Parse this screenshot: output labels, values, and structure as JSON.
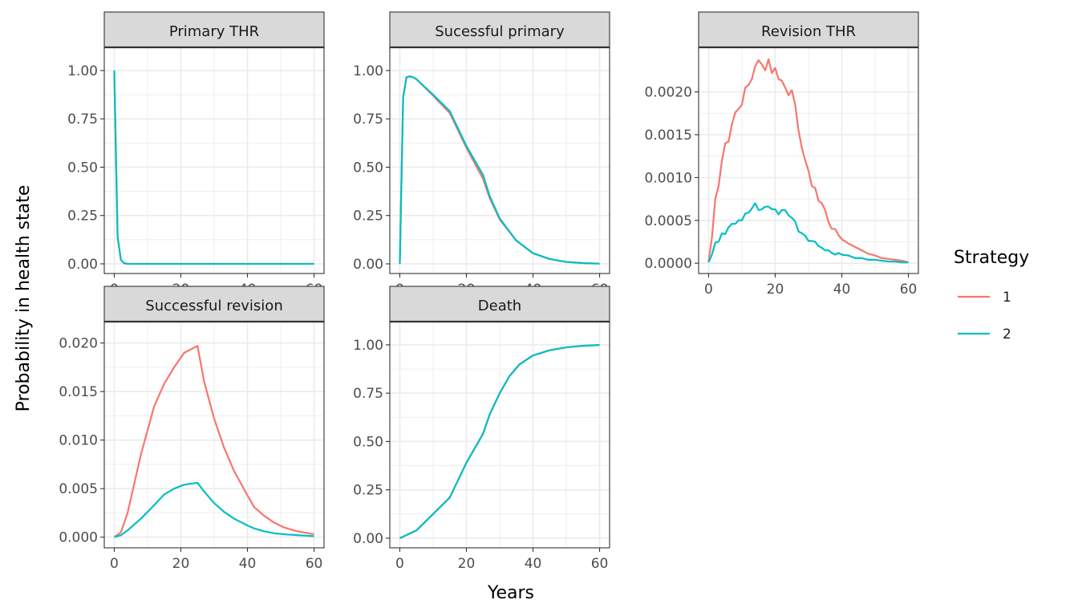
{
  "chart_data": {
    "type": "line",
    "xlabel": "Years",
    "ylabel": "Probability in health state",
    "legend": {
      "title": "Strategy",
      "placement": "right",
      "entries": [
        {
          "label": "1",
          "color": "#F8766D"
        },
        {
          "label": "2",
          "color": "#00BFC4"
        }
      ]
    },
    "grid": true,
    "x_ticks": [
      "0",
      "20",
      "40",
      "60"
    ],
    "x_tick_values": [
      0,
      20,
      40,
      60
    ],
    "panels": [
      {
        "title": "Primary THR",
        "ylim": [
          -0.05,
          1.12
        ],
        "y_ticks": [
          "0.00",
          "0.25",
          "0.50",
          "0.75",
          "1.00"
        ],
        "y_tick_values": [
          0,
          0.25,
          0.5,
          0.75,
          1.0
        ],
        "series": [
          {
            "name": "1",
            "x": [
              0,
              1,
              2,
              3,
              4,
              5,
              10,
              20,
              30,
              40,
              50,
              60
            ],
            "y": [
              1.0,
              0.14,
              0.02,
              0.003,
              0.0005,
              0,
              0,
              0,
              0,
              0,
              0,
              0
            ]
          },
          {
            "name": "2",
            "x": [
              0,
              1,
              2,
              3,
              4,
              5,
              10,
              20,
              30,
              40,
              50,
              60
            ],
            "y": [
              1.0,
              0.14,
              0.02,
              0.003,
              0.0005,
              0,
              0,
              0,
              0,
              0,
              0,
              0
            ]
          }
        ]
      },
      {
        "title": "Sucessful primary",
        "ylim": [
          -0.05,
          1.12
        ],
        "y_ticks": [
          "0.00",
          "0.25",
          "0.50",
          "0.75",
          "1.00"
        ],
        "y_tick_values": [
          0,
          0.25,
          0.5,
          0.75,
          1.0
        ],
        "series": [
          {
            "name": "1",
            "x": [
              0,
              1,
              2,
              3,
              4,
              5,
              10,
              15,
              20,
              25,
              27,
              30,
              35,
              40,
              45,
              50,
              55,
              60
            ],
            "y": [
              0,
              0.86,
              0.965,
              0.97,
              0.965,
              0.955,
              0.87,
              0.78,
              0.6,
              0.44,
              0.34,
              0.23,
              0.12,
              0.055,
              0.025,
              0.01,
              0.004,
              0.001
            ]
          },
          {
            "name": "2",
            "x": [
              0,
              1,
              2,
              3,
              4,
              5,
              10,
              15,
              20,
              25,
              27,
              30,
              35,
              40,
              45,
              50,
              55,
              60
            ],
            "y": [
              0,
              0.86,
              0.965,
              0.97,
              0.965,
              0.955,
              0.875,
              0.79,
              0.61,
              0.46,
              0.35,
              0.235,
              0.12,
              0.055,
              0.025,
              0.01,
              0.004,
              0.001
            ]
          }
        ]
      },
      {
        "title": "Revision THR",
        "ylim": [
          -0.00012,
          0.00252
        ],
        "y_ticks": [
          "0.0000",
          "0.0005",
          "0.0010",
          "0.0015",
          "0.0020"
        ],
        "y_tick_values": [
          0,
          0.0005,
          0.001,
          0.0015,
          0.002
        ],
        "series": [
          {
            "name": "1",
            "x": [
              0,
              1,
              2,
              3,
              4,
              5,
              6,
              7,
              8,
              9,
              10,
              11,
              12,
              13,
              14,
              15,
              16,
              17,
              18,
              19,
              20,
              21,
              22,
              23,
              24,
              25,
              26,
              27,
              28,
              29,
              30,
              31,
              32,
              33,
              34,
              35,
              36,
              37,
              38,
              39,
              40,
              42,
              44,
              46,
              48,
              50,
              52,
              54,
              56,
              58,
              60
            ],
            "y": [
              2e-05,
              0.0003,
              0.00075,
              0.0009,
              0.0012,
              0.0014,
              0.00142,
              0.00162,
              0.00176,
              0.0018,
              0.00185,
              0.00205,
              0.00208,
              0.00215,
              0.0023,
              0.00237,
              0.00232,
              0.00225,
              0.00238,
              0.00222,
              0.00228,
              0.00215,
              0.00213,
              0.00205,
              0.00196,
              0.00202,
              0.00185,
              0.00155,
              0.00135,
              0.0012,
              0.00108,
              0.0009,
              0.00088,
              0.00073,
              0.0007,
              0.00062,
              0.00048,
              0.0004,
              0.0004,
              0.00033,
              0.00028,
              0.00023,
              0.00019,
              0.00015,
              0.00011,
              9e-05,
              6e-05,
              5e-05,
              4e-05,
              3e-05,
              1e-05
            ]
          },
          {
            "name": "2",
            "x": [
              0,
              1,
              2,
              3,
              4,
              5,
              6,
              7,
              8,
              9,
              10,
              11,
              12,
              13,
              14,
              15,
              16,
              17,
              18,
              19,
              20,
              21,
              22,
              23,
              24,
              25,
              26,
              27,
              28,
              29,
              30,
              31,
              32,
              33,
              34,
              35,
              36,
              37,
              38,
              39,
              40,
              42,
              44,
              46,
              48,
              50,
              52,
              54,
              56,
              58,
              60
            ],
            "y": [
              1e-05,
              0.0001,
              0.00024,
              0.00025,
              0.00035,
              0.00034,
              0.00042,
              0.00046,
              0.00046,
              0.0005,
              0.0005,
              0.00058,
              0.00059,
              0.00064,
              0.0007,
              0.00062,
              0.00063,
              0.00066,
              0.00066,
              0.00063,
              0.00063,
              0.00057,
              0.00062,
              0.00062,
              0.00056,
              0.00053,
              0.00049,
              0.00037,
              0.00035,
              0.00032,
              0.00026,
              0.00026,
              0.00025,
              0.0002,
              0.00018,
              0.00015,
              0.00015,
              0.00012,
              0.0001,
              0.00012,
              0.0001,
              9e-05,
              6e-05,
              6e-05,
              4e-05,
              4e-05,
              3e-05,
              2e-05,
              2e-05,
              1e-05,
              1e-05
            ]
          }
        ]
      },
      {
        "title": "Successful revision",
        "ylim": [
          -0.0011,
          0.0222
        ],
        "y_ticks": [
          "0.000",
          "0.005",
          "0.010",
          "0.015",
          "0.020"
        ],
        "y_tick_values": [
          0,
          0.005,
          0.01,
          0.015,
          0.02
        ],
        "series": [
          {
            "name": "1",
            "x": [
              0,
              2,
              4,
              6,
              8,
              10,
              12,
              15,
              18,
              21,
              25,
              27,
              30,
              33,
              36,
              40,
              42,
              45,
              48,
              51,
              55,
              60
            ],
            "y": [
              0,
              0.0005,
              0.0025,
              0.0055,
              0.0085,
              0.011,
              0.0135,
              0.0158,
              0.0175,
              0.019,
              0.0197,
              0.016,
              0.0122,
              0.0092,
              0.0068,
              0.0043,
              0.0031,
              0.0022,
              0.0015,
              0.001,
              0.0006,
              0.0003
            ]
          },
          {
            "name": "2",
            "x": [
              0,
              2,
              4,
              6,
              8,
              10,
              12,
              15,
              18,
              21,
              25,
              27,
              30,
              33,
              36,
              40,
              42,
              45,
              48,
              51,
              55,
              60
            ],
            "y": [
              0,
              0.0002,
              0.0007,
              0.0013,
              0.0019,
              0.0026,
              0.0033,
              0.0044,
              0.005,
              0.0054,
              0.0056,
              0.0047,
              0.0035,
              0.0026,
              0.0019,
              0.0012,
              0.0009,
              0.0006,
              0.0004,
              0.0003,
              0.0002,
              0.0001
            ]
          }
        ]
      },
      {
        "title": "Death",
        "ylim": [
          -0.05,
          1.12
        ],
        "y_ticks": [
          "0.00",
          "0.25",
          "0.50",
          "0.75",
          "1.00"
        ],
        "y_tick_values": [
          0,
          0.25,
          0.5,
          0.75,
          1.0
        ],
        "series": [
          {
            "name": "1",
            "x": [
              0,
              5,
              10,
              15,
              20,
              25,
              27,
              30,
              33,
              36,
              40,
              45,
              50,
              55,
              60
            ],
            "y": [
              0,
              0.04,
              0.125,
              0.21,
              0.39,
              0.54,
              0.64,
              0.75,
              0.84,
              0.9,
              0.945,
              0.972,
              0.987,
              0.995,
              0.999
            ]
          },
          {
            "name": "2",
            "x": [
              0,
              5,
              10,
              15,
              20,
              25,
              27,
              30,
              33,
              36,
              40,
              45,
              50,
              55,
              60
            ],
            "y": [
              0,
              0.04,
              0.125,
              0.21,
              0.39,
              0.54,
              0.64,
              0.75,
              0.84,
              0.9,
              0.945,
              0.972,
              0.987,
              0.995,
              0.999
            ]
          }
        ]
      }
    ]
  }
}
